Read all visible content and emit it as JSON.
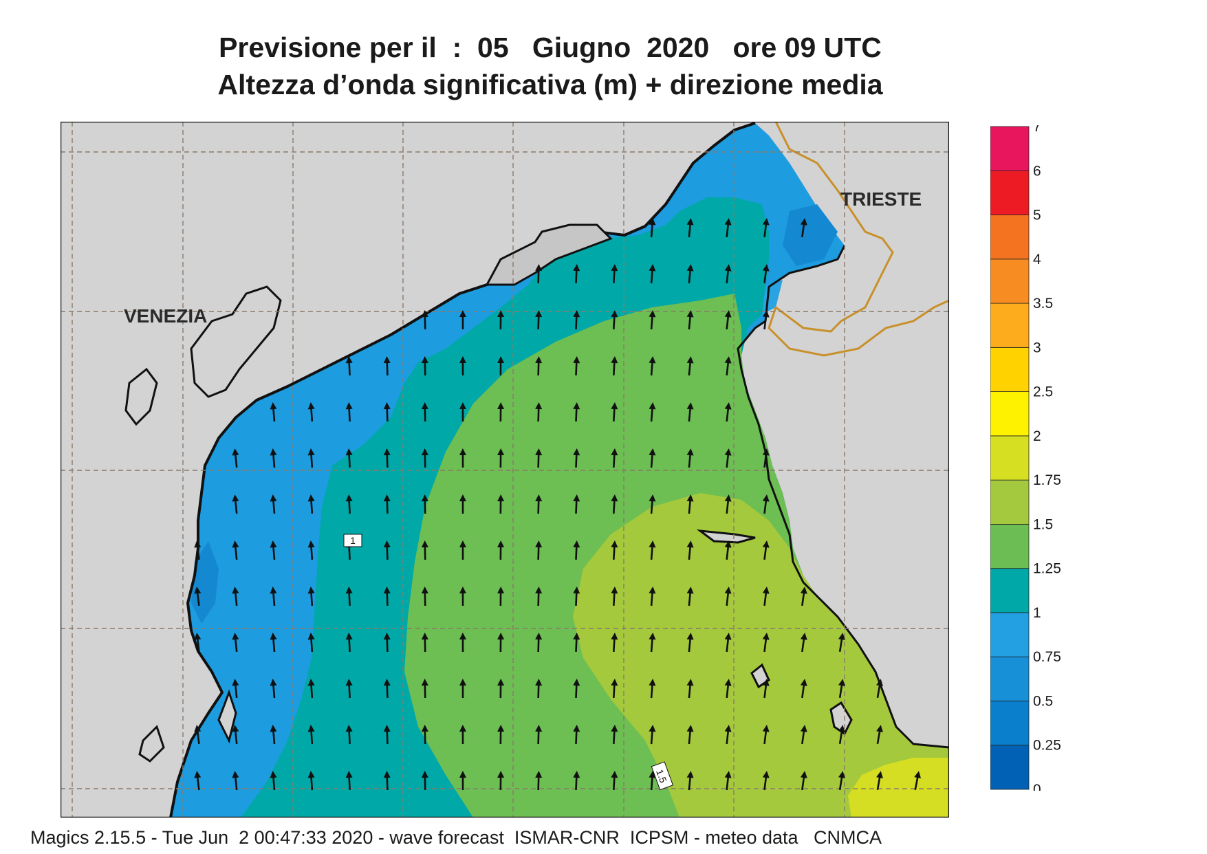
{
  "title": {
    "line1": "Previsione per il  :  05   Giugno  2020   ore 09 UTC",
    "line2": "Altezza d’onda significativa (m) + direzione media"
  },
  "map": {
    "cities": [
      "VENEZIA",
      "TRIESTE"
    ],
    "field_labels": [
      "1",
      "1.5"
    ],
    "colors": {
      "land": "#d3d3d3",
      "coast": "#111111",
      "border": "#c8902a",
      "grid": "#8a7a6a",
      "arrow": "#111111"
    }
  },
  "legend": {
    "labels": [
      "0",
      "0.25",
      "0.5",
      "0.75",
      "1",
      "1.25",
      "1.5",
      "1.75",
      "2",
      "2.5",
      "3",
      "3.5",
      "4",
      "5",
      "6",
      "7"
    ],
    "colors": [
      "#0061b5",
      "#0a7fcc",
      "#1790d8",
      "#23a0e2",
      "#00a8a8",
      "#6cbd54",
      "#a4c93e",
      "#d6df22",
      "#fff200",
      "#ffd200",
      "#fcac1c",
      "#f78d22",
      "#f47321",
      "#ed1c24",
      "#e8175d"
    ]
  },
  "footer": "Magics 2.15.5 - Tue Jun  2 00:47:33 2020 - wave forecast  ISMAR-CNR  ICPSM - meteo data   CNMCA"
}
